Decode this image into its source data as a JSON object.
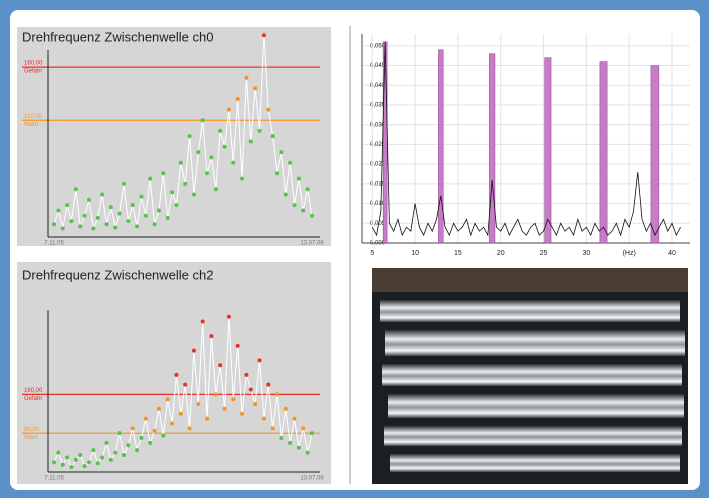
{
  "chart_data": [
    {
      "type": "line",
      "title": "Drehfrequenz Zwischenwelle ch0",
      "categories": [
        "7.11.05",
        null,
        null,
        null,
        null,
        null,
        null,
        null,
        null,
        null,
        null,
        null,
        null,
        null,
        null,
        null,
        null,
        null,
        null,
        null,
        null,
        null,
        null,
        null,
        null,
        null,
        null,
        null,
        null,
        null,
        null,
        null,
        null,
        null,
        null,
        null,
        null,
        null,
        null,
        null,
        null,
        null,
        null,
        null,
        null,
        null,
        null,
        null,
        null,
        null,
        null,
        null,
        null,
        null,
        null,
        null,
        null,
        null,
        null,
        "13.07.06"
      ],
      "values": [
        12,
        25,
        8,
        30,
        15,
        45,
        10,
        20,
        35,
        8,
        18,
        40,
        12,
        28,
        9,
        22,
        50,
        15,
        30,
        10,
        38,
        20,
        55,
        12,
        25,
        60,
        18,
        42,
        30,
        70,
        50,
        95,
        40,
        80,
        110,
        60,
        75,
        45,
        100,
        85,
        120,
        70,
        130,
        55,
        150,
        90,
        140,
        100,
        190,
        120,
        95,
        60,
        80,
        40,
        70,
        30,
        55,
        25,
        45,
        20
      ],
      "ylim": [
        0,
        195
      ],
      "line_color": "#ffffff",
      "point_color": "#55c24a",
      "thresholds": [
        {
          "value": 160,
          "value_label": "160,00",
          "text": "Gefahr",
          "color": "#e8302a"
        },
        {
          "value": 110,
          "value_label": "110,00",
          "text": "Warn",
          "color": "#f5931e"
        }
      ]
    },
    {
      "type": "line",
      "title": "Drehfrequenz Zwischenwelle ch2",
      "categories": [
        "7.11.05",
        null,
        null,
        null,
        null,
        null,
        null,
        null,
        null,
        null,
        null,
        null,
        null,
        null,
        null,
        null,
        null,
        null,
        null,
        null,
        null,
        null,
        null,
        null,
        null,
        null,
        null,
        null,
        null,
        null,
        null,
        null,
        null,
        null,
        null,
        null,
        null,
        null,
        null,
        null,
        null,
        null,
        null,
        null,
        null,
        null,
        null,
        null,
        null,
        null,
        null,
        null,
        null,
        null,
        null,
        null,
        null,
        null,
        null,
        "13.07.06"
      ],
      "values": [
        20,
        40,
        15,
        30,
        10,
        25,
        35,
        12,
        20,
        45,
        18,
        30,
        60,
        25,
        40,
        80,
        35,
        55,
        90,
        45,
        70,
        110,
        60,
        85,
        130,
        75,
        150,
        100,
        200,
        120,
        180,
        90,
        250,
        140,
        310,
        110,
        280,
        160,
        220,
        130,
        320,
        150,
        260,
        120,
        200,
        170,
        140,
        230,
        110,
        180,
        90,
        160,
        70,
        130,
        60,
        110,
        50,
        90,
        40,
        80
      ],
      "ylim": [
        0,
        375
      ],
      "line_color": "#ffffff",
      "point_color": "#55c24a",
      "thresholds": [
        {
          "value": 160,
          "value_label": "160,00",
          "text": "Gefahr",
          "color": "#e8302a"
        },
        {
          "value": 80,
          "value_label": "80,00",
          "text": "Warn",
          "color": "#f5931e"
        }
      ]
    },
    {
      "type": "bar",
      "grid": true,
      "bars": {
        "x": [
          6.5,
          13,
          19,
          25.5,
          32,
          38
        ],
        "values": [
          0.051,
          0.049,
          0.048,
          0.047,
          0.046,
          0.045
        ],
        "color": "#c77cc7"
      },
      "line_series": {
        "x": [
          5,
          5.5,
          6,
          6.5,
          7,
          7.5,
          8,
          8.5,
          9,
          9.5,
          10,
          10.5,
          11,
          11.5,
          12,
          12.5,
          13,
          13.5,
          14,
          14.5,
          15,
          15.5,
          16,
          16.5,
          17,
          17.5,
          18,
          18.5,
          19,
          19.5,
          20,
          20.5,
          21,
          21.5,
          22,
          22.5,
          23,
          23.5,
          24,
          24.5,
          25,
          25.5,
          26,
          26.5,
          27,
          27.5,
          28,
          28.5,
          29,
          29.5,
          30,
          30.5,
          31,
          31.5,
          32,
          32.5,
          33,
          33.5,
          34,
          34.5,
          35,
          35.5,
          36,
          36.5,
          37,
          37.5,
          38,
          38.5,
          39,
          39.5,
          40,
          40.5,
          41
        ],
        "values": [
          0.004,
          0.002,
          0.008,
          0.051,
          0.005,
          0.003,
          0.006,
          0.002,
          0.004,
          0.003,
          0.01,
          0.004,
          0.002,
          0.005,
          0.003,
          0.006,
          0.012,
          0.004,
          0.002,
          0.005,
          0.003,
          0.004,
          0.006,
          0.002,
          0.005,
          0.003,
          0.004,
          0.002,
          0.016,
          0.004,
          0.003,
          0.005,
          0.002,
          0.004,
          0.006,
          0.003,
          0.002,
          0.004,
          0.005,
          0.002,
          0.003,
          0.006,
          0.004,
          0.002,
          0.005,
          0.003,
          0.004,
          0.002,
          0.006,
          0.003,
          0.004,
          0.002,
          0.005,
          0.003,
          0.004,
          0.002,
          0.003,
          0.005,
          0.002,
          0.006,
          0.004,
          0.008,
          0.018,
          0.006,
          0.003,
          0.005,
          0.002,
          0.004,
          0.006,
          0.003,
          0.005,
          0.002,
          0.004
        ],
        "color": "#111111"
      },
      "xlim": [
        3.8,
        42.1
      ],
      "ylim": [
        0,
        0.053
      ],
      "xticks": [
        5,
        10,
        15,
        20,
        25,
        30,
        {
          "value": 35,
          "label": "(Hz)"
        },
        40
      ],
      "yticks": [
        {
          "value": 0,
          "label": "0,000"
        },
        {
          "value": 0.005,
          "label": "0,005"
        },
        {
          "value": 0.01,
          "label": "0,010"
        },
        {
          "value": 0.015,
          "label": "0,015"
        },
        {
          "value": 0.02,
          "label": "0,020"
        },
        {
          "value": 0.025,
          "label": "0,025"
        },
        {
          "value": 0.03,
          "label": "0,030"
        },
        {
          "value": 0.035,
          "label": "0,035"
        },
        {
          "value": 0.04,
          "label": "0,040"
        },
        {
          "value": 0.045,
          "label": "0,045"
        },
        {
          "value": 0.05,
          "label": "0,050"
        }
      ]
    }
  ]
}
